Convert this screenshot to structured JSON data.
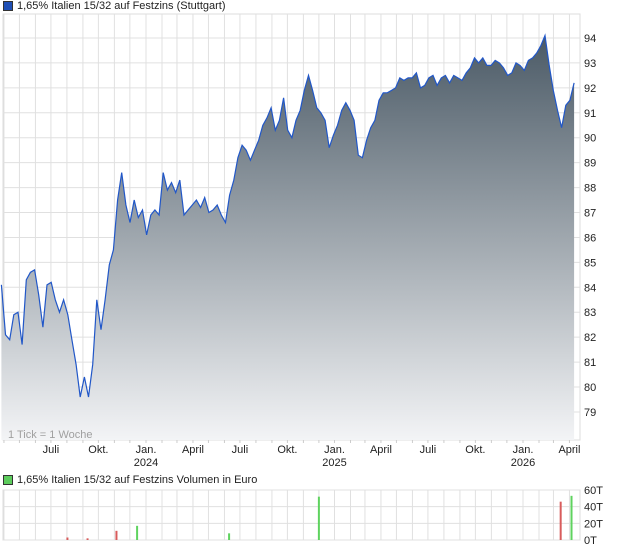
{
  "chart_data": [
    {
      "type": "area",
      "title": "1,65% Italien 15/32 auf Festzins (Stuttgart)",
      "colors": {
        "legend": "#1f4fb5",
        "line": "#2157c8",
        "fill_top": "#4b5a66",
        "fill_bottom": "#f3f4f6"
      },
      "note": "1 Tick = 1 Woche",
      "x_range": [
        "2023-03-27",
        "2026-04-10"
      ],
      "ylim": [
        78,
        95
      ],
      "y_ticks": [
        79,
        80,
        81,
        82,
        83,
        84,
        85,
        86,
        87,
        88,
        89,
        90,
        91,
        92,
        93,
        94
      ],
      "x_ticks": [
        {
          "label": "Juli",
          "year": "",
          "date": "2023-07-01"
        },
        {
          "label": "Okt.",
          "year": "",
          "date": "2023-10-01"
        },
        {
          "label": "Jan.",
          "year": "2024",
          "date": "2024-01-01"
        },
        {
          "label": "April",
          "year": "",
          "date": "2024-04-01"
        },
        {
          "label": "Juli",
          "year": "",
          "date": "2024-07-01"
        },
        {
          "label": "Okt.",
          "year": "",
          "date": "2024-10-01"
        },
        {
          "label": "Jan.",
          "year": "2025",
          "date": "2025-01-01"
        },
        {
          "label": "April",
          "year": "",
          "date": "2025-04-01"
        },
        {
          "label": "Juli",
          "year": "",
          "date": "2025-07-01"
        },
        {
          "label": "Okt.",
          "year": "",
          "date": "2025-10-01"
        },
        {
          "label": "Jan.",
          "year": "2026",
          "date": "2026-01-01"
        },
        {
          "label": "April",
          "year": "",
          "date": "2026-04-01"
        }
      ],
      "grid": true,
      "values": [
        84.1,
        82.1,
        81.9,
        82.9,
        83.0,
        81.7,
        84.3,
        84.6,
        84.7,
        83.7,
        82.4,
        84.1,
        84.2,
        83.5,
        83.0,
        83.5,
        82.9,
        81.9,
        80.9,
        79.6,
        80.4,
        79.6,
        80.9,
        83.5,
        82.3,
        83.5,
        84.9,
        85.5,
        87.5,
        88.6,
        87.3,
        86.6,
        87.5,
        86.8,
        87.1,
        86.1,
        86.9,
        87.1,
        86.9,
        88.6,
        87.9,
        88.2,
        87.8,
        88.3,
        86.9,
        87.1,
        87.3,
        87.5,
        87.2,
        87.6,
        87.0,
        87.1,
        87.3,
        86.9,
        86.6,
        87.7,
        88.3,
        89.2,
        89.7,
        89.5,
        89.1,
        89.5,
        89.9,
        90.5,
        90.8,
        91.2,
        90.3,
        90.7,
        91.6,
        90.3,
        90.0,
        90.7,
        91.1,
        91.9,
        92.5,
        91.9,
        91.2,
        91.0,
        90.7,
        89.6,
        90.1,
        90.5,
        91.1,
        91.4,
        91.1,
        90.7,
        89.3,
        89.2,
        89.9,
        90.4,
        90.7,
        91.5,
        91.8,
        91.8,
        91.9,
        92.0,
        92.4,
        92.3,
        92.4,
        92.4,
        92.6,
        92.0,
        92.1,
        92.4,
        92.5,
        92.1,
        92.4,
        92.5,
        92.2,
        92.5,
        92.4,
        92.3,
        92.6,
        92.8,
        93.2,
        93.0,
        93.2,
        92.9,
        92.9,
        93.1,
        93.0,
        92.8,
        92.5,
        92.6,
        93.0,
        92.9,
        92.7,
        93.1,
        93.2,
        93.4,
        93.7,
        94.1,
        92.9,
        91.9,
        91.1,
        90.4,
        91.3,
        91.5,
        92.2
      ]
    },
    {
      "type": "bar",
      "title": "1,65% Italien 15/32 auf Festzins Volumen in Euro",
      "colors": {
        "legend": "#5ccc5c",
        "up": "#5fd35f",
        "down": "#d85c5c"
      },
      "ylim": [
        0,
        60
      ],
      "y_ticks": [
        "0T",
        "20T",
        "40T",
        "60T"
      ],
      "bars": [
        {
          "date": "2023-08-02",
          "value": 3,
          "dir": "down"
        },
        {
          "date": "2023-09-10",
          "value": 2,
          "dir": "down"
        },
        {
          "date": "2023-11-05",
          "value": 11,
          "dir": "down"
        },
        {
          "date": "2023-12-15",
          "value": 17,
          "dir": "up"
        },
        {
          "date": "2024-06-10",
          "value": 8,
          "dir": "up"
        },
        {
          "date": "2024-12-01",
          "value": 52,
          "dir": "up"
        },
        {
          "date": "2026-03-15",
          "value": 46,
          "dir": "down"
        },
        {
          "date": "2026-04-05",
          "value": 53,
          "dir": "up"
        }
      ]
    }
  ]
}
